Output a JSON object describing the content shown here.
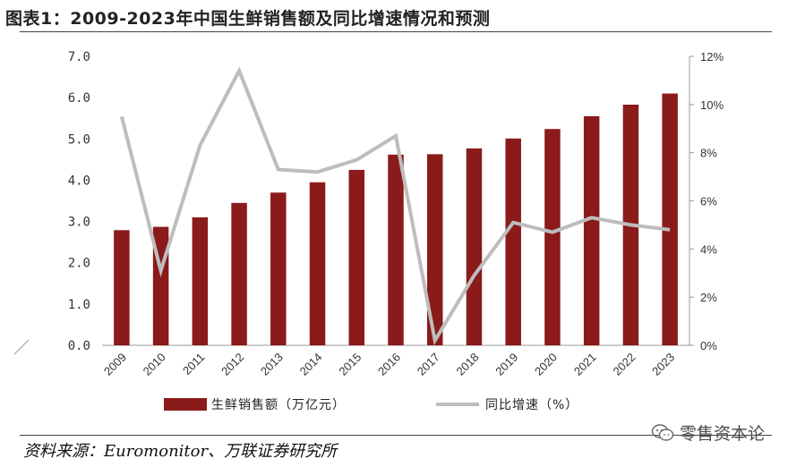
{
  "title": "图表1：2009-2023年中国生鲜销售额及同比增速情况和预测",
  "source": "资料来源：Euromonitor、万联证券研究所",
  "watermark": "零售资本论",
  "chart_data": {
    "type": "bar",
    "categories": [
      "2009",
      "2010",
      "2011",
      "2012",
      "2013",
      "2014",
      "2015",
      "2016",
      "2017",
      "2018",
      "2019",
      "2020",
      "2021",
      "2022",
      "2023"
    ],
    "series": [
      {
        "name": "生鲜销售额（万亿元）",
        "type": "bar",
        "axis": "left",
        "color": "#8b1a1a",
        "values": [
          2.79,
          2.87,
          3.1,
          3.45,
          3.7,
          3.95,
          4.25,
          4.62,
          4.63,
          4.77,
          5.01,
          5.24,
          5.55,
          5.83,
          6.1
        ]
      },
      {
        "name": "同比增速（%）",
        "type": "line",
        "axis": "right",
        "color": "#bdbdbd",
        "values": [
          9.5,
          3.1,
          8.3,
          11.4,
          7.3,
          7.2,
          7.7,
          8.7,
          0.2,
          2.9,
          5.1,
          4.7,
          5.3,
          5.0,
          4.8
        ]
      }
    ],
    "yleft": {
      "ylim": [
        0,
        7
      ],
      "ticks": [
        "0.0",
        "1.0",
        "2.0",
        "3.0",
        "4.0",
        "5.0",
        "6.0",
        "7.0"
      ]
    },
    "yright": {
      "ylim": [
        0,
        12
      ],
      "ticks": [
        "0%",
        "2%",
        "4%",
        "6%",
        "8%",
        "10%",
        "12%"
      ]
    },
    "legend_position": "bottom-center",
    "xlabel": "",
    "ylabel": ""
  }
}
